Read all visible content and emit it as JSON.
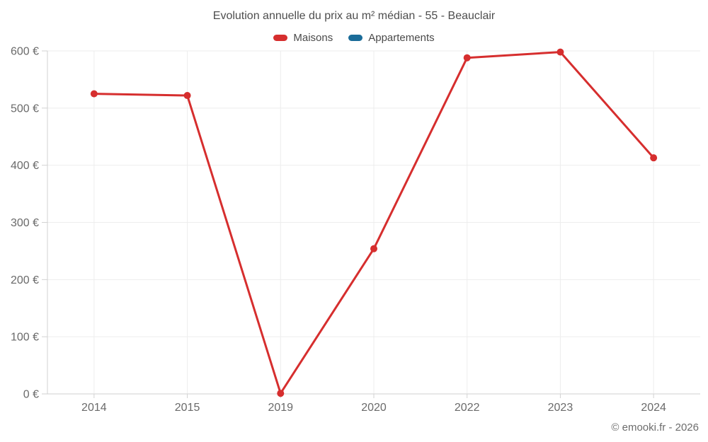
{
  "chart_data": {
    "type": "line",
    "title": "Evolution annuelle du prix au m² médian - 55 - Beauclair",
    "categories": [
      "2014",
      "2015",
      "2019",
      "2020",
      "2022",
      "2023",
      "2024"
    ],
    "series": [
      {
        "name": "Maisons",
        "color": "#d62e2e",
        "values": [
          525,
          522,
          1,
          254,
          588,
          598,
          413
        ]
      },
      {
        "name": "Appartements",
        "color": "#1a6c99",
        "values": [
          null,
          null,
          null,
          null,
          null,
          null,
          null
        ]
      }
    ],
    "xlabel": "",
    "ylabel": "",
    "ylim": [
      0,
      600
    ],
    "ytick_step": 100,
    "ytick_suffix": " €",
    "grid": true,
    "legend_position": "top",
    "colors": {
      "gridline": "#ededed",
      "axis": "#d2d2d2",
      "tick_label": "#6a6a6a"
    }
  },
  "footer": {
    "credit": "© emooki.fr - 2026"
  }
}
